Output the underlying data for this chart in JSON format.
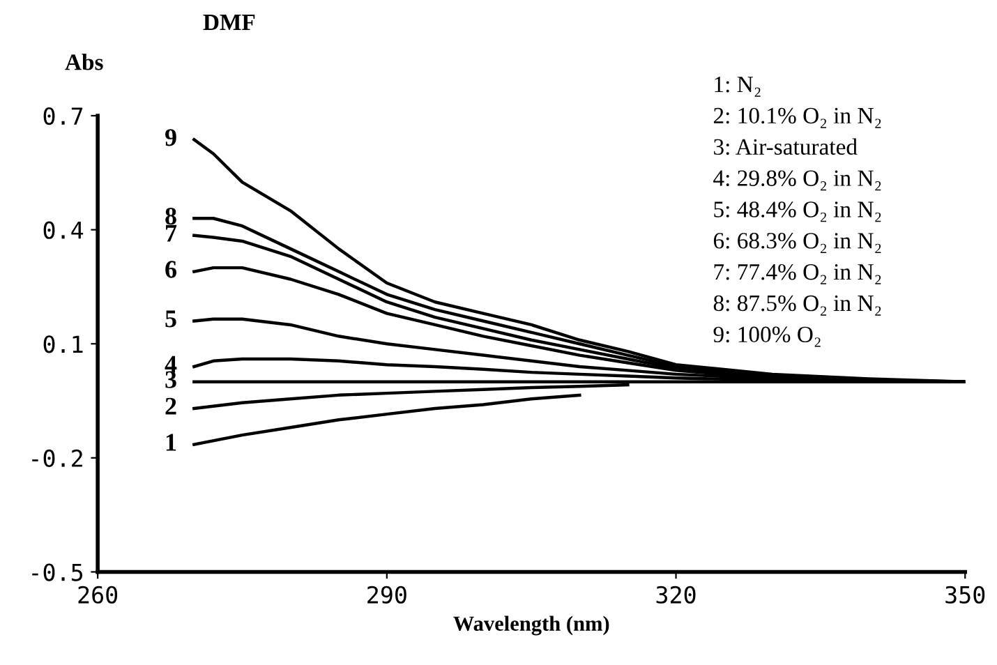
{
  "chart_data": {
    "type": "line",
    "title": "DMF",
    "ylabel": "Abs",
    "xlabel": "Wavelength (nm)",
    "xlim": [
      260,
      350
    ],
    "ylim": [
      -0.5,
      0.7
    ],
    "xticks": [
      260,
      290,
      320,
      350
    ],
    "yticks": [
      0.7,
      0.4,
      0.1,
      -0.2,
      -0.5
    ],
    "grid": false,
    "legend": false,
    "marker": "none",
    "line_style": "solid",
    "series": [
      {
        "name": "1",
        "color": "#000000",
        "x": [
          270,
          275,
          280,
          285,
          290,
          295,
          300,
          305,
          310
        ],
        "values": [
          -0.165,
          -0.14,
          -0.12,
          -0.1,
          -0.085,
          -0.07,
          -0.06,
          -0.045,
          -0.035
        ]
      },
      {
        "name": "2",
        "color": "#000000",
        "x": [
          270,
          275,
          280,
          285,
          290,
          295,
          300,
          305,
          310,
          315
        ],
        "values": [
          -0.07,
          -0.055,
          -0.045,
          -0.035,
          -0.03,
          -0.025,
          -0.02,
          -0.015,
          -0.012,
          -0.008
        ]
      },
      {
        "name": "3",
        "color": "#000000",
        "x": [
          270,
          290,
          310,
          330,
          350
        ],
        "values": [
          0,
          0,
          0,
          0,
          0
        ]
      },
      {
        "name": "4",
        "color": "#000000",
        "x": [
          270,
          272,
          275,
          280,
          285,
          290,
          295,
          300,
          305,
          310,
          315,
          320,
          330,
          340,
          350
        ],
        "values": [
          0.04,
          0.055,
          0.06,
          0.06,
          0.055,
          0.045,
          0.04,
          0.033,
          0.025,
          0.02,
          0.015,
          0.01,
          0.004,
          0.001,
          0
        ]
      },
      {
        "name": "5",
        "color": "#000000",
        "x": [
          270,
          272,
          275,
          280,
          285,
          290,
          295,
          300,
          305,
          310,
          315,
          320,
          330,
          340,
          350
        ],
        "values": [
          0.16,
          0.165,
          0.165,
          0.15,
          0.12,
          0.1,
          0.085,
          0.07,
          0.055,
          0.04,
          0.03,
          0.02,
          0.008,
          0.002,
          0
        ]
      },
      {
        "name": "6",
        "color": "#000000",
        "x": [
          270,
          272,
          275,
          280,
          285,
          290,
          295,
          300,
          305,
          310,
          315,
          320,
          330,
          340,
          350
        ],
        "values": [
          0.29,
          0.3,
          0.3,
          0.27,
          0.23,
          0.18,
          0.15,
          0.12,
          0.095,
          0.07,
          0.05,
          0.03,
          0.01,
          0.003,
          0
        ]
      },
      {
        "name": "7",
        "color": "#000000",
        "x": [
          270,
          272,
          275,
          280,
          285,
          290,
          295,
          300,
          305,
          310,
          315,
          320,
          330,
          340,
          350
        ],
        "values": [
          0.385,
          0.38,
          0.37,
          0.33,
          0.27,
          0.21,
          0.17,
          0.14,
          0.11,
          0.085,
          0.06,
          0.035,
          0.012,
          0.004,
          0
        ]
      },
      {
        "name": "8",
        "color": "#000000",
        "x": [
          270,
          272,
          275,
          280,
          285,
          290,
          295,
          300,
          305,
          310,
          315,
          320,
          330,
          340,
          350
        ],
        "values": [
          0.43,
          0.43,
          0.41,
          0.35,
          0.29,
          0.23,
          0.19,
          0.16,
          0.13,
          0.1,
          0.07,
          0.04,
          0.015,
          0.005,
          0
        ]
      },
      {
        "name": "9",
        "color": "#000000",
        "x": [
          270,
          272,
          275,
          280,
          285,
          290,
          295,
          300,
          305,
          310,
          315,
          320,
          330,
          340,
          350
        ],
        "values": [
          0.637,
          0.6,
          0.525,
          0.45,
          0.35,
          0.26,
          0.21,
          0.18,
          0.15,
          0.11,
          0.08,
          0.045,
          0.02,
          0.008,
          0
        ]
      }
    ],
    "annotations": [
      "1: N₂",
      "2: 10.1% O₂ in N₂",
      "3: Air-saturated",
      "4: 29.8% O₂ in N₂",
      "5: 48.4% O₂ in N₂",
      "6: 68.3% O₂ in N₂",
      "7: 77.4% O₂ in N₂",
      "8: 87.5% O₂ in N₂",
      "9: 100% O₂"
    ]
  }
}
